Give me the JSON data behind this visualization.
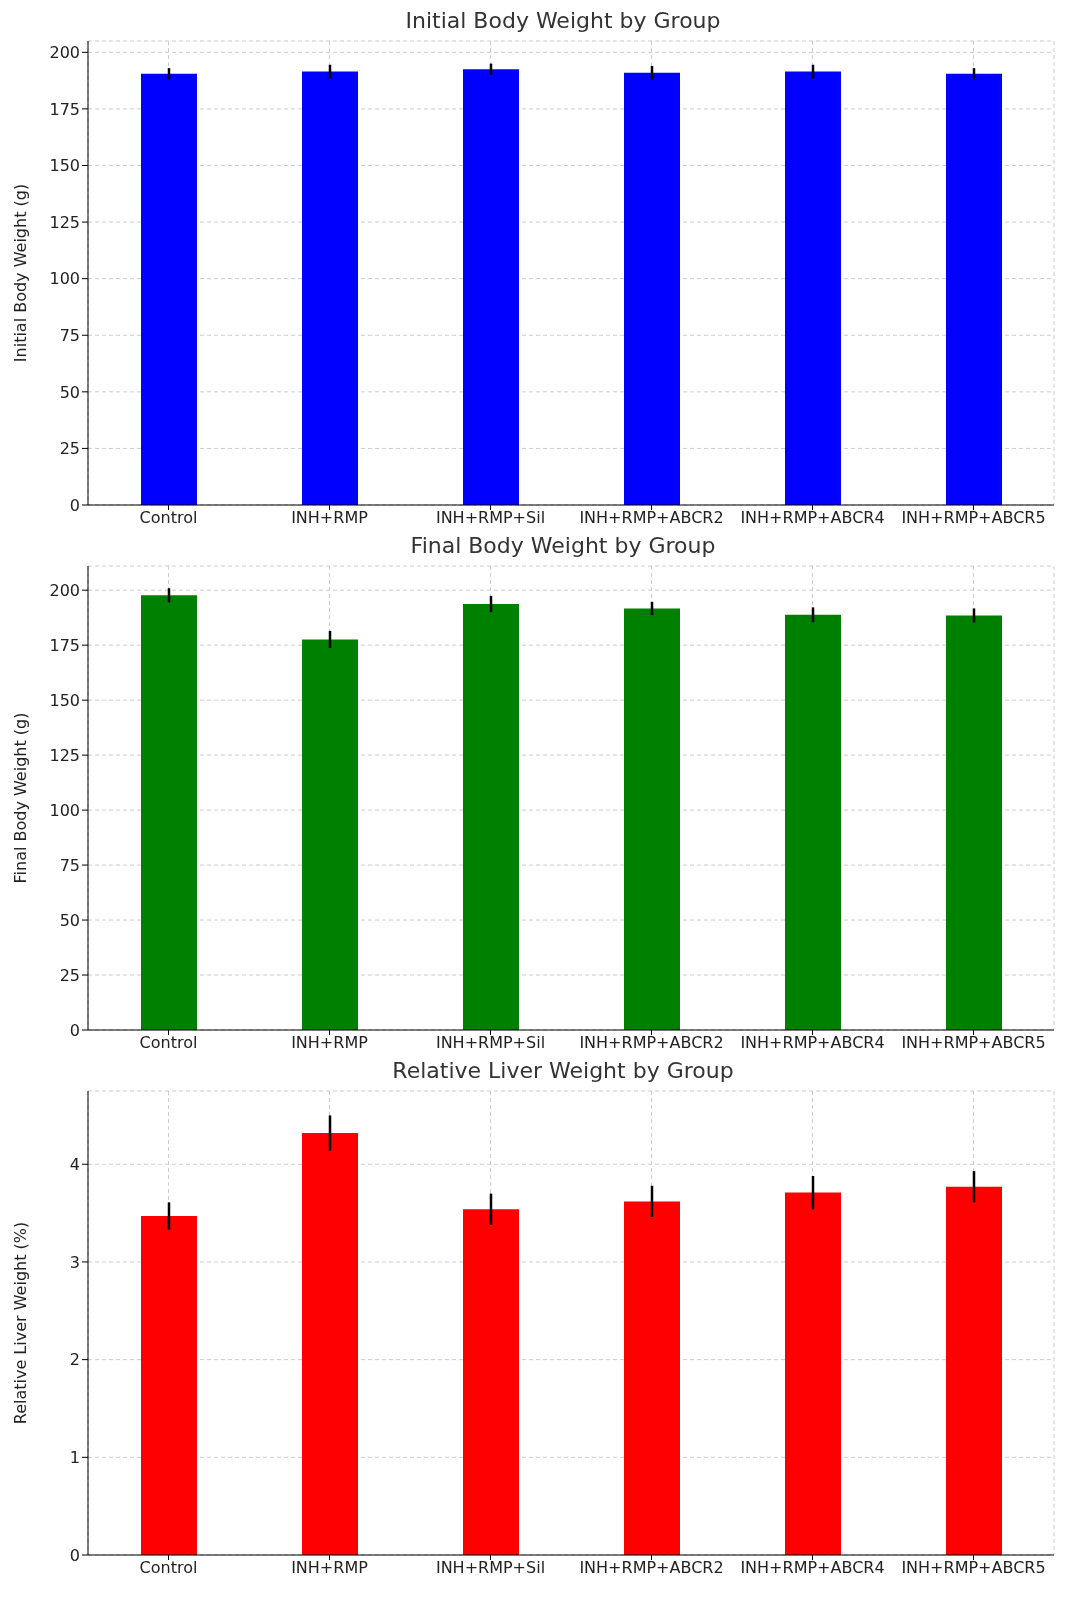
{
  "chart_data": [
    {
      "type": "bar",
      "title": "Initial Body Weight by Group",
      "ylabel": "Initial Body Weight (g)",
      "categories": [
        "Control",
        "INH+RMP",
        "INH+RMP+Sil",
        "INH+RMP+ABCR2",
        "INH+RMP+ABCR4",
        "INH+RMP+ABCR5"
      ],
      "values": [
        190.5,
        191.5,
        192.5,
        191,
        191.5,
        190.5
      ],
      "errors": [
        2.5,
        3,
        2.5,
        3,
        3,
        2.5
      ],
      "color": "#0000ff",
      "ylim": [
        0,
        205
      ],
      "yticks": [
        0,
        25,
        50,
        75,
        100,
        125,
        150,
        175,
        200
      ],
      "grid": true
    },
    {
      "type": "bar",
      "title": "Final Body Weight by Group",
      "ylabel": "Final Body Weight (g)",
      "categories": [
        "Control",
        "INH+RMP",
        "INH+RMP+Sil",
        "INH+RMP+ABCR2",
        "INH+RMP+ABCR4",
        "INH+RMP+ABCR5"
      ],
      "values": [
        197.7,
        177.6,
        193.7,
        191.7,
        188.8,
        188.5
      ],
      "errors": [
        3.2,
        3.9,
        3.7,
        3,
        3.4,
        3.2
      ],
      "color": "#008000",
      "ylim": [
        0,
        211
      ],
      "yticks": [
        0,
        25,
        50,
        75,
        100,
        125,
        150,
        175,
        200
      ],
      "grid": true
    },
    {
      "type": "bar",
      "title": "Relative Liver Weight by Group",
      "ylabel": "Relative Liver Weight (%)",
      "categories": [
        "Control",
        "INH+RMP",
        "INH+RMP+Sil",
        "INH+RMP+ABCR2",
        "INH+RMP+ABCR4",
        "INH+RMP+ABCR5"
      ],
      "values": [
        3.47,
        4.32,
        3.54,
        3.62,
        3.71,
        3.77
      ],
      "errors": [
        0.14,
        0.18,
        0.16,
        0.16,
        0.17,
        0.16
      ],
      "color": "#ff0000",
      "ylim": [
        0,
        4.75
      ],
      "yticks": [
        0,
        1,
        2,
        3,
        4
      ],
      "grid": true
    }
  ]
}
